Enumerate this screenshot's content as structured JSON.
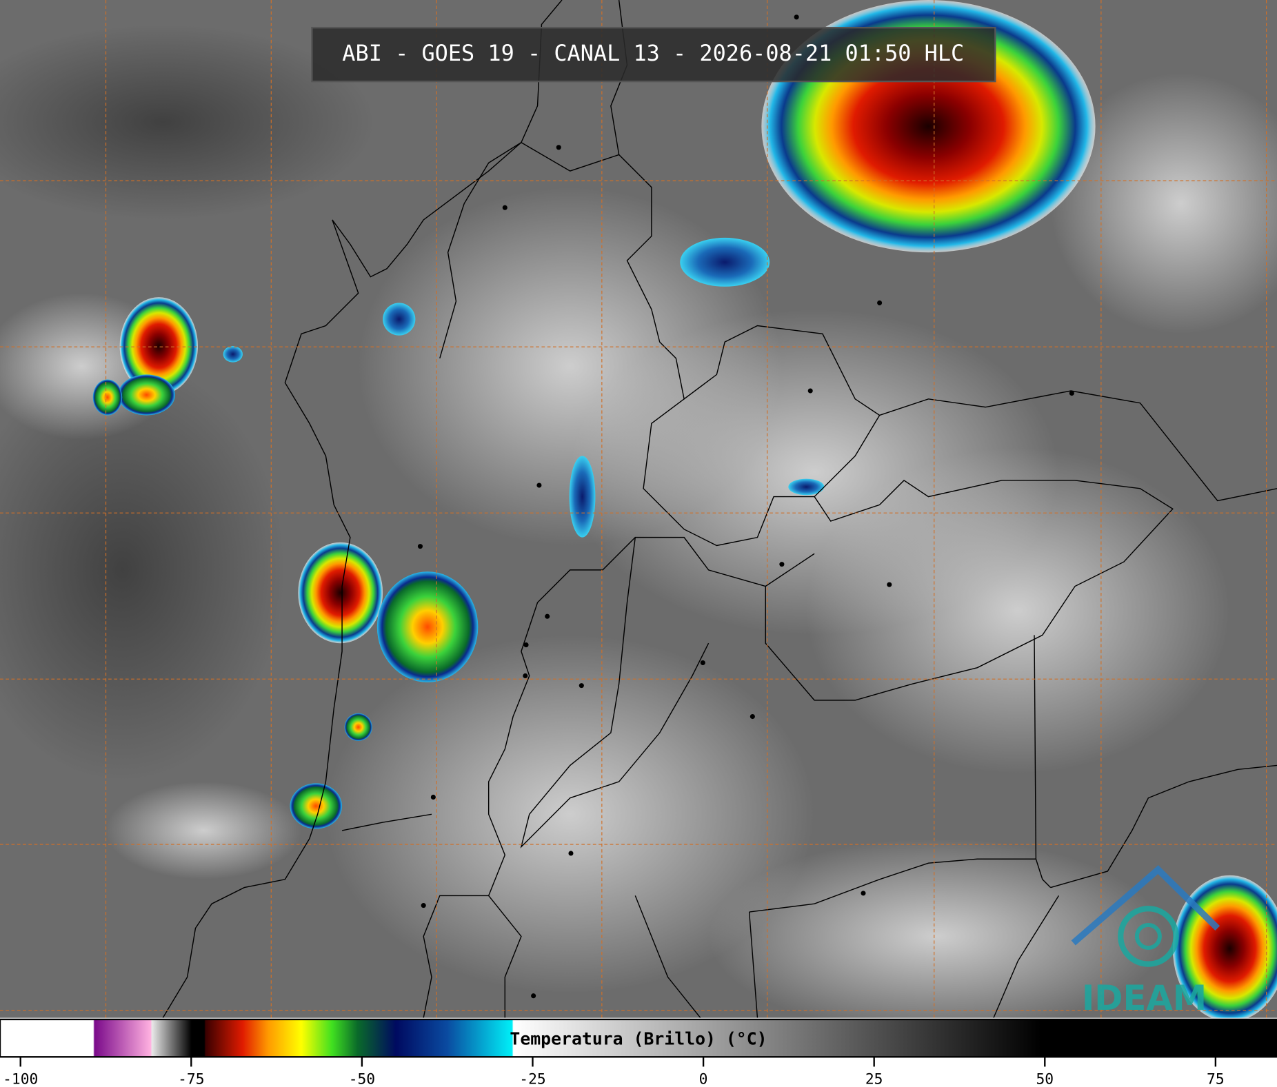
{
  "header": {
    "title": "ABI - GOES 19 - CANAL 13 - 2026-08-21 01:50 HLC"
  },
  "colorbar": {
    "label": "Temperatura (Brillo) (°C)",
    "lim": [
      -103,
      84
    ],
    "ticks": [
      -100,
      -75,
      -50,
      -25,
      0,
      25,
      50,
      75
    ]
  },
  "logo": {
    "text": "IDEAM"
  }
}
